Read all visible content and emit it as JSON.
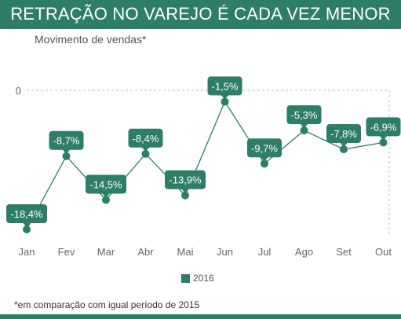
{
  "header": {
    "title": "RETRAÇÃO NO VAREJO É CADA VEZ MENOR",
    "subtitle": "Movimento de vendas*"
  },
  "footnote": "*em comparação com igual período de 2015",
  "colors": {
    "accent": "#2e7d67",
    "label_text": "#ffffff",
    "axis_text": "#666666",
    "grid": "#bfbfbf"
  },
  "chart_data": {
    "type": "line",
    "categories": [
      "Jan",
      "Fev",
      "Mar",
      "Abr",
      "Mai",
      "Jun",
      "Jul",
      "Ago",
      "Set",
      "Out"
    ],
    "series": [
      {
        "name": "2016",
        "values": [
          -18.4,
          -8.7,
          -14.5,
          -8.4,
          -13.9,
          -1.5,
          -9.7,
          -5.3,
          -7.8,
          -6.9
        ],
        "labels": [
          "-18,4%",
          "-8,7%",
          "-14,5%",
          "-8,4%",
          "-13,9%",
          "-1,5%",
          "-9,7%",
          "-5,3%",
          "-7,8%",
          "-6,9%"
        ]
      }
    ],
    "y_ticks": [
      "0"
    ],
    "ylim": [
      -20,
      0
    ],
    "grid": "dashed zero line",
    "legend_position": "bottom-center",
    "unit": "%"
  }
}
